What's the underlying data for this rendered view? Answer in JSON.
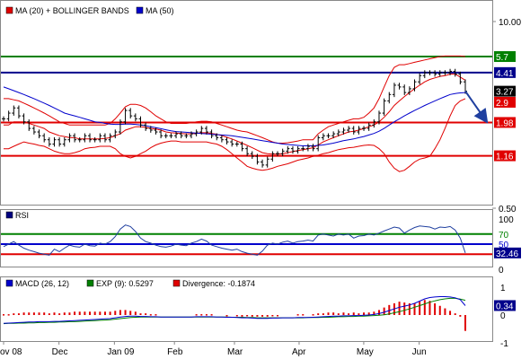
{
  "chart_data": [
    {
      "type": "line",
      "panel": "price",
      "legend": [
        {
          "label": "MA (20) + BOLLINGER BANDS",
          "color": "#e00000"
        },
        {
          "label": "MA (50)",
          "color": "#0000cc"
        }
      ],
      "x_ticks": [
        "ov 08",
        "Dec",
        "Jan 09",
        "Feb",
        "Mar",
        "Apr",
        "May",
        "Jun"
      ],
      "y_ticks": [
        10.0,
        0.5
      ],
      "y_tick_labels": [
        "10.00",
        "0.50"
      ],
      "scale": "log",
      "ylim": [
        0.5,
        10
      ],
      "levels": [
        {
          "value": 5.7,
          "label": "5.7",
          "color": "#008000"
        },
        {
          "value": 4.41,
          "label": "4.41",
          "color": "#00008b"
        },
        {
          "value": 1.98,
          "label": "1.98",
          "color": "#e00000"
        },
        {
          "value": 1.16,
          "label": "1.16",
          "color": "#e00000"
        }
      ],
      "value_labels": [
        {
          "value": 3.27,
          "label": "3.27",
          "color": "#000000"
        },
        {
          "value": 2.9,
          "label": "2.9",
          "color": "#e00000"
        }
      ],
      "close": [
        2.1,
        2.3,
        2.5,
        2.2,
        2.0,
        1.8,
        1.7,
        1.6,
        1.5,
        1.4,
        1.5,
        1.4,
        1.5,
        1.6,
        1.5,
        1.5,
        1.6,
        1.5,
        1.5,
        1.6,
        1.5,
        1.6,
        1.7,
        2.0,
        2.4,
        2.2,
        2.1,
        1.9,
        1.8,
        1.75,
        1.7,
        1.6,
        1.6,
        1.6,
        1.65,
        1.6,
        1.6,
        1.65,
        1.7,
        1.8,
        1.7,
        1.6,
        1.55,
        1.5,
        1.45,
        1.4,
        1.4,
        1.3,
        1.2,
        1.15,
        1.05,
        1.0,
        1.1,
        1.2,
        1.2,
        1.25,
        1.3,
        1.25,
        1.3,
        1.3,
        1.35,
        1.3,
        1.55,
        1.6,
        1.6,
        1.65,
        1.7,
        1.75,
        1.8,
        1.7,
        1.8,
        1.8,
        1.9,
        2.0,
        2.3,
        2.8,
        3.1,
        3.6,
        3.5,
        3.2,
        3.4,
        3.8,
        4.2,
        4.4,
        4.4,
        4.3,
        4.4,
        4.4,
        4.5,
        4.3,
        3.8,
        3.27
      ],
      "ma20": [
        1.9,
        1.9,
        2.0,
        2.0,
        2.0,
        1.95,
        1.9,
        1.85,
        1.8,
        1.7,
        1.65,
        1.6,
        1.58,
        1.55,
        1.55,
        1.52,
        1.52,
        1.52,
        1.52,
        1.52,
        1.53,
        1.55,
        1.6,
        1.65,
        1.75,
        1.8,
        1.85,
        1.85,
        1.83,
        1.8,
        1.78,
        1.75,
        1.7,
        1.68,
        1.67,
        1.66,
        1.65,
        1.65,
        1.66,
        1.68,
        1.68,
        1.66,
        1.64,
        1.6,
        1.56,
        1.52,
        1.47,
        1.42,
        1.37,
        1.32,
        1.27,
        1.22,
        1.2,
        1.19,
        1.19,
        1.2,
        1.22,
        1.24,
        1.26,
        1.28,
        1.3,
        1.32,
        1.38,
        1.45,
        1.5,
        1.55,
        1.6,
        1.65,
        1.7,
        1.72,
        1.75,
        1.8,
        1.85,
        1.9,
        2.0,
        2.15,
        2.35,
        2.6,
        2.8,
        3.0,
        3.2,
        3.4,
        3.6,
        3.8,
        3.95,
        4.05,
        4.15,
        4.2,
        4.3,
        4.3,
        4.1,
        3.9
      ],
      "upper_band": [
        2.9,
        2.9,
        2.85,
        2.8,
        2.7,
        2.6,
        2.5,
        2.4,
        2.3,
        2.2,
        2.1,
        2.0,
        1.95,
        1.9,
        1.9,
        1.9,
        1.9,
        1.9,
        1.9,
        1.9,
        1.9,
        1.95,
        2.1,
        2.3,
        2.55,
        2.65,
        2.65,
        2.6,
        2.5,
        2.35,
        2.2,
        2.1,
        2.0,
        1.95,
        1.95,
        1.95,
        1.95,
        1.97,
        2.0,
        2.02,
        2.02,
        2.0,
        1.95,
        1.9,
        1.85,
        1.8,
        1.75,
        1.72,
        1.7,
        1.65,
        1.6,
        1.55,
        1.5,
        1.45,
        1.42,
        1.42,
        1.43,
        1.45,
        1.47,
        1.5,
        1.5,
        1.5,
        1.65,
        1.75,
        1.85,
        1.9,
        1.95,
        2.0,
        2.05,
        2.1,
        2.1,
        2.15,
        2.3,
        2.5,
        2.9,
        3.5,
        4.2,
        4.8,
        5.0,
        5.0,
        5.1,
        5.2,
        5.3,
        5.4,
        5.5,
        5.6,
        5.7,
        5.75,
        5.75,
        5.75,
        5.75,
        5.7
      ],
      "lower_band": [
        1.3,
        1.3,
        1.35,
        1.4,
        1.45,
        1.42,
        1.4,
        1.37,
        1.35,
        1.3,
        1.25,
        1.22,
        1.2,
        1.2,
        1.22,
        1.25,
        1.3,
        1.32,
        1.33,
        1.35,
        1.35,
        1.35,
        1.3,
        1.2,
        1.15,
        1.12,
        1.15,
        1.2,
        1.25,
        1.32,
        1.38,
        1.42,
        1.45,
        1.47,
        1.47,
        1.45,
        1.45,
        1.45,
        1.45,
        1.45,
        1.45,
        1.42,
        1.4,
        1.35,
        1.28,
        1.2,
        1.12,
        1.05,
        0.98,
        0.95,
        0.93,
        0.92,
        0.93,
        0.95,
        0.98,
        1.0,
        1.02,
        1.05,
        1.08,
        1.1,
        1.12,
        1.15,
        1.17,
        1.2,
        1.22,
        1.25,
        1.28,
        1.3,
        1.32,
        1.33,
        1.35,
        1.37,
        1.38,
        1.37,
        1.3,
        1.2,
        1.05,
        0.95,
        0.9,
        0.92,
        0.98,
        1.05,
        1.1,
        1.12,
        1.15,
        1.3,
        1.5,
        1.8,
        2.2,
        2.6,
        2.8,
        2.9
      ],
      "ma50": [
        3.5,
        3.4,
        3.3,
        3.2,
        3.1,
        3.0,
        2.9,
        2.8,
        2.7,
        2.6,
        2.5,
        2.4,
        2.3,
        2.25,
        2.2,
        2.15,
        2.1,
        2.05,
        2.0,
        1.98,
        1.95,
        1.93,
        1.92,
        1.92,
        1.93,
        1.93,
        1.92,
        1.9,
        1.88,
        1.85,
        1.82,
        1.79,
        1.76,
        1.73,
        1.71,
        1.7,
        1.69,
        1.68,
        1.67,
        1.66,
        1.65,
        1.64,
        1.63,
        1.62,
        1.61,
        1.6,
        1.58,
        1.56,
        1.54,
        1.52,
        1.5,
        1.48,
        1.46,
        1.44,
        1.42,
        1.4,
        1.39,
        1.38,
        1.37,
        1.36,
        1.36,
        1.36,
        1.37,
        1.38,
        1.4,
        1.42,
        1.45,
        1.48,
        1.5,
        1.52,
        1.55,
        1.58,
        1.62,
        1.66,
        1.72,
        1.8,
        1.9,
        2.0,
        2.1,
        2.2,
        2.3,
        2.4,
        2.5,
        2.6,
        2.7,
        2.8,
        2.9,
        3.0,
        3.1,
        3.15,
        3.18,
        3.2
      ],
      "projection": {
        "from": 3.27,
        "to": 1.98
      }
    },
    {
      "type": "line",
      "panel": "rsi",
      "legend": [
        {
          "label": "RSI",
          "color": "#000080"
        }
      ],
      "y_ticks": [
        100,
        70,
        50,
        0
      ],
      "ylim": [
        0,
        100
      ],
      "levels": [
        {
          "value": 70,
          "label": "70",
          "color": "#008000"
        },
        {
          "value": 50,
          "label": "50",
          "color": "#0000cc"
        },
        {
          "value": 30,
          "label": "30",
          "color": "#e00000"
        }
      ],
      "value_label": {
        "value": 32.46,
        "label": "32.46"
      },
      "values": [
        45,
        50,
        55,
        48,
        42,
        38,
        35,
        32,
        30,
        28,
        40,
        35,
        42,
        48,
        45,
        44,
        50,
        47,
        46,
        52,
        50,
        55,
        65,
        80,
        88,
        85,
        75,
        62,
        55,
        52,
        48,
        45,
        44,
        46,
        50,
        48,
        47,
        52,
        55,
        60,
        56,
        48,
        45,
        42,
        40,
        38,
        40,
        35,
        32,
        30,
        28,
        36,
        48,
        52,
        50,
        54,
        56,
        52,
        55,
        56,
        58,
        56,
        68,
        70,
        68,
        66,
        70,
        68,
        70,
        62,
        66,
        67,
        70,
        68,
        72,
        76,
        80,
        84,
        82,
        72,
        78,
        83,
        86,
        85,
        84,
        80,
        84,
        83,
        85,
        78,
        62,
        32.46
      ]
    },
    {
      "type": "line",
      "panel": "macd",
      "legend": [
        {
          "label": "MACD (26, 12)",
          "color": "#0000cc"
        },
        {
          "label": "EXP (9): 0.5297",
          "color": "#008000"
        },
        {
          "label": "Divergence: -0.1874",
          "color": "#e00000"
        }
      ],
      "y_ticks": [
        1,
        0,
        -1
      ],
      "ylim": [
        -1,
        1
      ],
      "value_label": {
        "value": 0.34,
        "label": "0.34"
      },
      "macd": [
        -0.3,
        -0.29,
        -0.28,
        -0.27,
        -0.26,
        -0.25,
        -0.25,
        -0.24,
        -0.24,
        -0.24,
        -0.23,
        -0.23,
        -0.22,
        -0.21,
        -0.2,
        -0.19,
        -0.18,
        -0.17,
        -0.16,
        -0.15,
        -0.14,
        -0.13,
        -0.1,
        -0.07,
        -0.05,
        -0.04,
        -0.04,
        -0.05,
        -0.05,
        -0.06,
        -0.06,
        -0.07,
        -0.07,
        -0.07,
        -0.07,
        -0.07,
        -0.07,
        -0.07,
        -0.06,
        -0.06,
        -0.06,
        -0.06,
        -0.07,
        -0.07,
        -0.08,
        -0.08,
        -0.09,
        -0.1,
        -0.1,
        -0.11,
        -0.12,
        -0.12,
        -0.12,
        -0.11,
        -0.11,
        -0.1,
        -0.1,
        -0.1,
        -0.09,
        -0.09,
        -0.09,
        -0.08,
        -0.07,
        -0.06,
        -0.05,
        -0.04,
        -0.04,
        -0.03,
        -0.03,
        -0.02,
        -0.02,
        -0.01,
        0.0,
        0.02,
        0.05,
        0.1,
        0.16,
        0.22,
        0.28,
        0.32,
        0.36,
        0.42,
        0.5,
        0.58,
        0.63,
        0.65,
        0.66,
        0.66,
        0.65,
        0.62,
        0.55,
        0.34
      ],
      "signal": [
        -0.31,
        -0.3,
        -0.3,
        -0.29,
        -0.29,
        -0.28,
        -0.28,
        -0.27,
        -0.27,
        -0.26,
        -0.26,
        -0.25,
        -0.25,
        -0.24,
        -0.24,
        -0.23,
        -0.22,
        -0.21,
        -0.2,
        -0.19,
        -0.18,
        -0.17,
        -0.15,
        -0.13,
        -0.11,
        -0.09,
        -0.08,
        -0.07,
        -0.07,
        -0.07,
        -0.07,
        -0.07,
        -0.07,
        -0.07,
        -0.07,
        -0.07,
        -0.07,
        -0.07,
        -0.07,
        -0.07,
        -0.07,
        -0.07,
        -0.07,
        -0.07,
        -0.07,
        -0.08,
        -0.08,
        -0.08,
        -0.09,
        -0.09,
        -0.1,
        -0.1,
        -0.1,
        -0.1,
        -0.1,
        -0.1,
        -0.1,
        -0.1,
        -0.1,
        -0.1,
        -0.09,
        -0.09,
        -0.09,
        -0.08,
        -0.08,
        -0.07,
        -0.06,
        -0.06,
        -0.05,
        -0.05,
        -0.04,
        -0.04,
        -0.03,
        -0.02,
        -0.01,
        0.01,
        0.04,
        0.08,
        0.12,
        0.17,
        0.22,
        0.28,
        0.34,
        0.4,
        0.46,
        0.51,
        0.55,
        0.58,
        0.6,
        0.6,
        0.57,
        0.53
      ]
    }
  ]
}
